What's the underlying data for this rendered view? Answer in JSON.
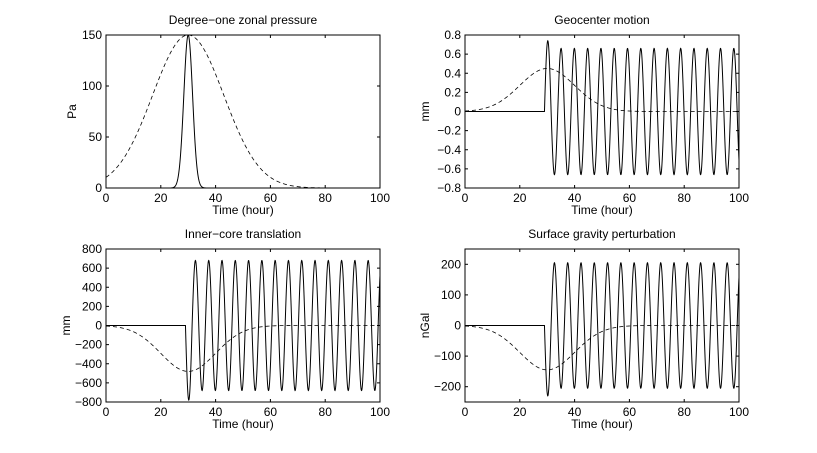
{
  "chart_data": [
    {
      "type": "line",
      "title": "Degree−one zonal pressure",
      "xlabel": "Time (hour)",
      "ylabel": "Pa",
      "xlim": [
        0,
        100
      ],
      "ylim": [
        0,
        150
      ],
      "xticks": [
        0,
        20,
        40,
        60,
        80,
        100
      ],
      "yticks": [
        0,
        50,
        100,
        150
      ],
      "xtick_labels": [
        "0",
        "20",
        "40",
        "60",
        "80",
        "100"
      ],
      "ytick_labels": [
        "0",
        "50",
        "100",
        "150"
      ],
      "series": [
        {
          "name": "solid",
          "style": "solid",
          "kind": "narrow_gaussian",
          "peak": 150,
          "center": 30,
          "sigma": 1.6
        },
        {
          "name": "dashed",
          "style": "dashed",
          "kind": "wide_gaussian",
          "peak": 150,
          "center": 30,
          "sigma": 13
        }
      ]
    },
    {
      "type": "line",
      "title": "Geocenter motion",
      "xlabel": "Time (hour)",
      "ylabel": "mm",
      "xlim": [
        0,
        100
      ],
      "ylim": [
        -0.8,
        0.8
      ],
      "xticks": [
        0,
        20,
        40,
        60,
        80,
        100
      ],
      "yticks": [
        -0.8,
        -0.6,
        -0.4,
        -0.2,
        0,
        0.2,
        0.4,
        0.6,
        0.8
      ],
      "xtick_labels": [
        "0",
        "20",
        "40",
        "60",
        "80",
        "100"
      ],
      "ytick_labels": [
        "−0.8",
        "−0.6",
        "−0.4",
        "−0.2",
        "0",
        "0.2",
        "0.4",
        "0.6",
        "0.8"
      ],
      "series": [
        {
          "name": "solid",
          "style": "solid",
          "kind": "oscillation",
          "onset": 29,
          "amplitude": 0.66,
          "first_peak": 0.74,
          "first_trough": -0.66,
          "period": 4.85
        },
        {
          "name": "dashed",
          "style": "dashed",
          "kind": "response",
          "peak": 0.45,
          "peak_time": 30,
          "rise_sigma": 10,
          "decay_sigma": 10
        }
      ]
    },
    {
      "type": "line",
      "title": "Inner−core translation",
      "xlabel": "Time (hour)",
      "ylabel": "mm",
      "xlim": [
        0,
        100
      ],
      "ylim": [
        -800,
        800
      ],
      "xticks": [
        0,
        20,
        40,
        60,
        80,
        100
      ],
      "yticks": [
        -800,
        -600,
        -400,
        -200,
        0,
        200,
        400,
        600,
        800
      ],
      "xtick_labels": [
        "0",
        "20",
        "40",
        "60",
        "80",
        "100"
      ],
      "ytick_labels": [
        "−800",
        "−600",
        "−400",
        "−200",
        "0",
        "200",
        "400",
        "600",
        "800"
      ],
      "series": [
        {
          "name": "solid",
          "style": "solid",
          "kind": "oscillation",
          "onset": 29,
          "amplitude": 680,
          "first_peak": -780,
          "first_trough": 690,
          "period": 4.85
        },
        {
          "name": "dashed",
          "style": "dashed",
          "kind": "response",
          "peak": -480,
          "peak_time": 30,
          "rise_sigma": 10,
          "decay_sigma": 10
        }
      ]
    },
    {
      "type": "line",
      "title": "Surface gravity perturbation",
      "xlabel": "Time (hour)",
      "ylabel": "nGal",
      "xlim": [
        0,
        100
      ],
      "ylim": [
        -250,
        250
      ],
      "xticks": [
        0,
        20,
        40,
        60,
        80,
        100
      ],
      "yticks": [
        -200,
        -100,
        0,
        100,
        200
      ],
      "xtick_labels": [
        "0",
        "20",
        "40",
        "60",
        "80",
        "100"
      ],
      "ytick_labels": [
        "−200",
        "−100",
        "0",
        "100",
        "200"
      ],
      "series": [
        {
          "name": "solid",
          "style": "solid",
          "kind": "oscillation",
          "onset": 29,
          "amplitude": 205,
          "first_peak": -230,
          "first_trough": 205,
          "period": 4.85
        },
        {
          "name": "dashed",
          "style": "dashed",
          "kind": "response",
          "peak": -145,
          "peak_time": 30,
          "rise_sigma": 10,
          "decay_sigma": 10
        }
      ]
    }
  ]
}
